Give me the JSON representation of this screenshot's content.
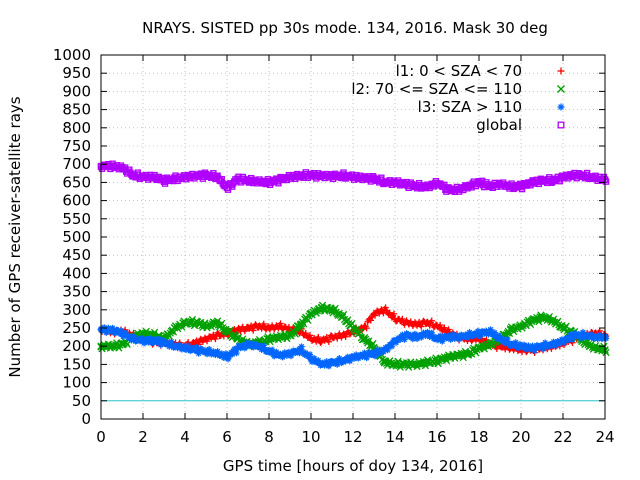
{
  "chart_data": {
    "type": "scatter",
    "title": "NRAYS. SISTED pp 30s mode. 134, 2016. Mask 30 deg",
    "xlabel": "GPS time [hours of doy 134, 2016]",
    "ylabel": "Number of GPS receiver-satellite rays",
    "xlim": [
      0,
      24
    ],
    "ylim": [
      0,
      1000
    ],
    "xticks": [
      0,
      2,
      4,
      6,
      8,
      10,
      12,
      14,
      16,
      18,
      20,
      22,
      24
    ],
    "yticks": [
      0,
      50,
      100,
      150,
      200,
      250,
      300,
      350,
      400,
      450,
      500,
      550,
      600,
      650,
      700,
      750,
      800,
      850,
      900,
      950,
      1000
    ],
    "grid": true,
    "legend_position": "top-right",
    "reference_line": {
      "y": 50,
      "color": "#29c6c6"
    },
    "series": [
      {
        "name": "l1: 0 < SZA < 70",
        "marker": "+",
        "color": "#ff0000",
        "x": [
          0,
          0.5,
          1,
          1.5,
          2,
          2.5,
          3,
          3.5,
          4,
          4.5,
          5,
          5.5,
          6,
          6.5,
          7,
          7.5,
          8,
          8.5,
          9,
          9.5,
          10,
          10.5,
          11,
          11.5,
          12,
          12.5,
          13,
          13.5,
          14,
          14.5,
          15,
          15.5,
          16,
          16.5,
          17,
          17.5,
          18,
          18.5,
          19,
          19.5,
          20,
          20.5,
          21,
          21.5,
          22,
          22.5,
          23,
          23.5,
          24
        ],
        "values": [
          245,
          240,
          240,
          230,
          220,
          210,
          210,
          205,
          200,
          210,
          220,
          230,
          235,
          245,
          250,
          255,
          250,
          255,
          245,
          240,
          220,
          215,
          225,
          230,
          240,
          250,
          290,
          300,
          275,
          265,
          260,
          265,
          255,
          240,
          225,
          220,
          220,
          205,
          200,
          195,
          190,
          190,
          195,
          200,
          210,
          220,
          230,
          235,
          230
        ]
      },
      {
        "name": "l2: 70 <= SZA <= 110",
        "marker": "x",
        "color": "#00a000",
        "x": [
          0,
          0.5,
          1,
          1.5,
          2,
          2.5,
          3,
          3.5,
          4,
          4.5,
          5,
          5.5,
          6,
          6.5,
          7,
          7.5,
          8,
          8.5,
          9,
          9.5,
          10,
          10.5,
          11,
          11.5,
          12,
          12.5,
          13,
          13.5,
          14,
          14.5,
          15,
          15.5,
          16,
          16.5,
          17,
          17.5,
          18,
          18.5,
          19,
          19.5,
          20,
          20.5,
          21,
          21.5,
          22,
          22.5,
          23,
          23.5,
          24
        ],
        "values": [
          200,
          200,
          205,
          225,
          235,
          230,
          220,
          250,
          265,
          265,
          255,
          265,
          240,
          220,
          205,
          210,
          220,
          225,
          230,
          260,
          290,
          305,
          300,
          280,
          250,
          220,
          195,
          155,
          150,
          150,
          150,
          155,
          160,
          170,
          175,
          180,
          195,
          205,
          220,
          245,
          255,
          270,
          280,
          270,
          250,
          235,
          210,
          195,
          190
        ]
      },
      {
        "name": "l3: SZA > 110",
        "marker": "*",
        "color": "#0066ff",
        "x": [
          0,
          0.5,
          1,
          1.5,
          2,
          2.5,
          3,
          3.5,
          4,
          4.5,
          5,
          5.5,
          6,
          6.5,
          7,
          7.5,
          8,
          8.5,
          9,
          9.5,
          10,
          10.5,
          11,
          11.5,
          12,
          12.5,
          13,
          13.5,
          14,
          14.5,
          15,
          15.5,
          16,
          16.5,
          17,
          17.5,
          18,
          18.5,
          19,
          19.5,
          20,
          20.5,
          21,
          21.5,
          22,
          22.5,
          23,
          23.5,
          24
        ],
        "values": [
          245,
          245,
          235,
          220,
          215,
          215,
          210,
          200,
          195,
          190,
          185,
          180,
          170,
          195,
          205,
          200,
          185,
          175,
          180,
          190,
          165,
          150,
          155,
          160,
          170,
          175,
          180,
          190,
          215,
          230,
          225,
          235,
          220,
          225,
          225,
          230,
          235,
          240,
          220,
          205,
          200,
          195,
          200,
          205,
          215,
          230,
          230,
          225,
          225
        ]
      },
      {
        "name": "global",
        "marker": "square",
        "color": "#b000ff",
        "x": [
          0,
          0.5,
          1,
          1.5,
          2,
          2.5,
          3,
          3.5,
          4,
          4.5,
          5,
          5.5,
          6,
          6.5,
          7,
          7.5,
          8,
          8.5,
          9,
          9.5,
          10,
          10.5,
          11,
          11.5,
          12,
          12.5,
          13,
          13.5,
          14,
          14.5,
          15,
          15.5,
          16,
          16.5,
          17,
          17.5,
          18,
          18.5,
          19,
          19.5,
          20,
          20.5,
          21,
          21.5,
          22,
          22.5,
          23,
          23.5,
          24
        ],
        "values": [
          695,
          695,
          690,
          670,
          665,
          665,
          655,
          660,
          665,
          668,
          670,
          665,
          635,
          660,
          655,
          652,
          650,
          658,
          665,
          668,
          670,
          668,
          667,
          668,
          665,
          662,
          660,
          650,
          650,
          645,
          640,
          638,
          648,
          630,
          630,
          640,
          650,
          640,
          645,
          638,
          640,
          650,
          655,
          655,
          665,
          670,
          668,
          662,
          658
        ]
      }
    ]
  }
}
